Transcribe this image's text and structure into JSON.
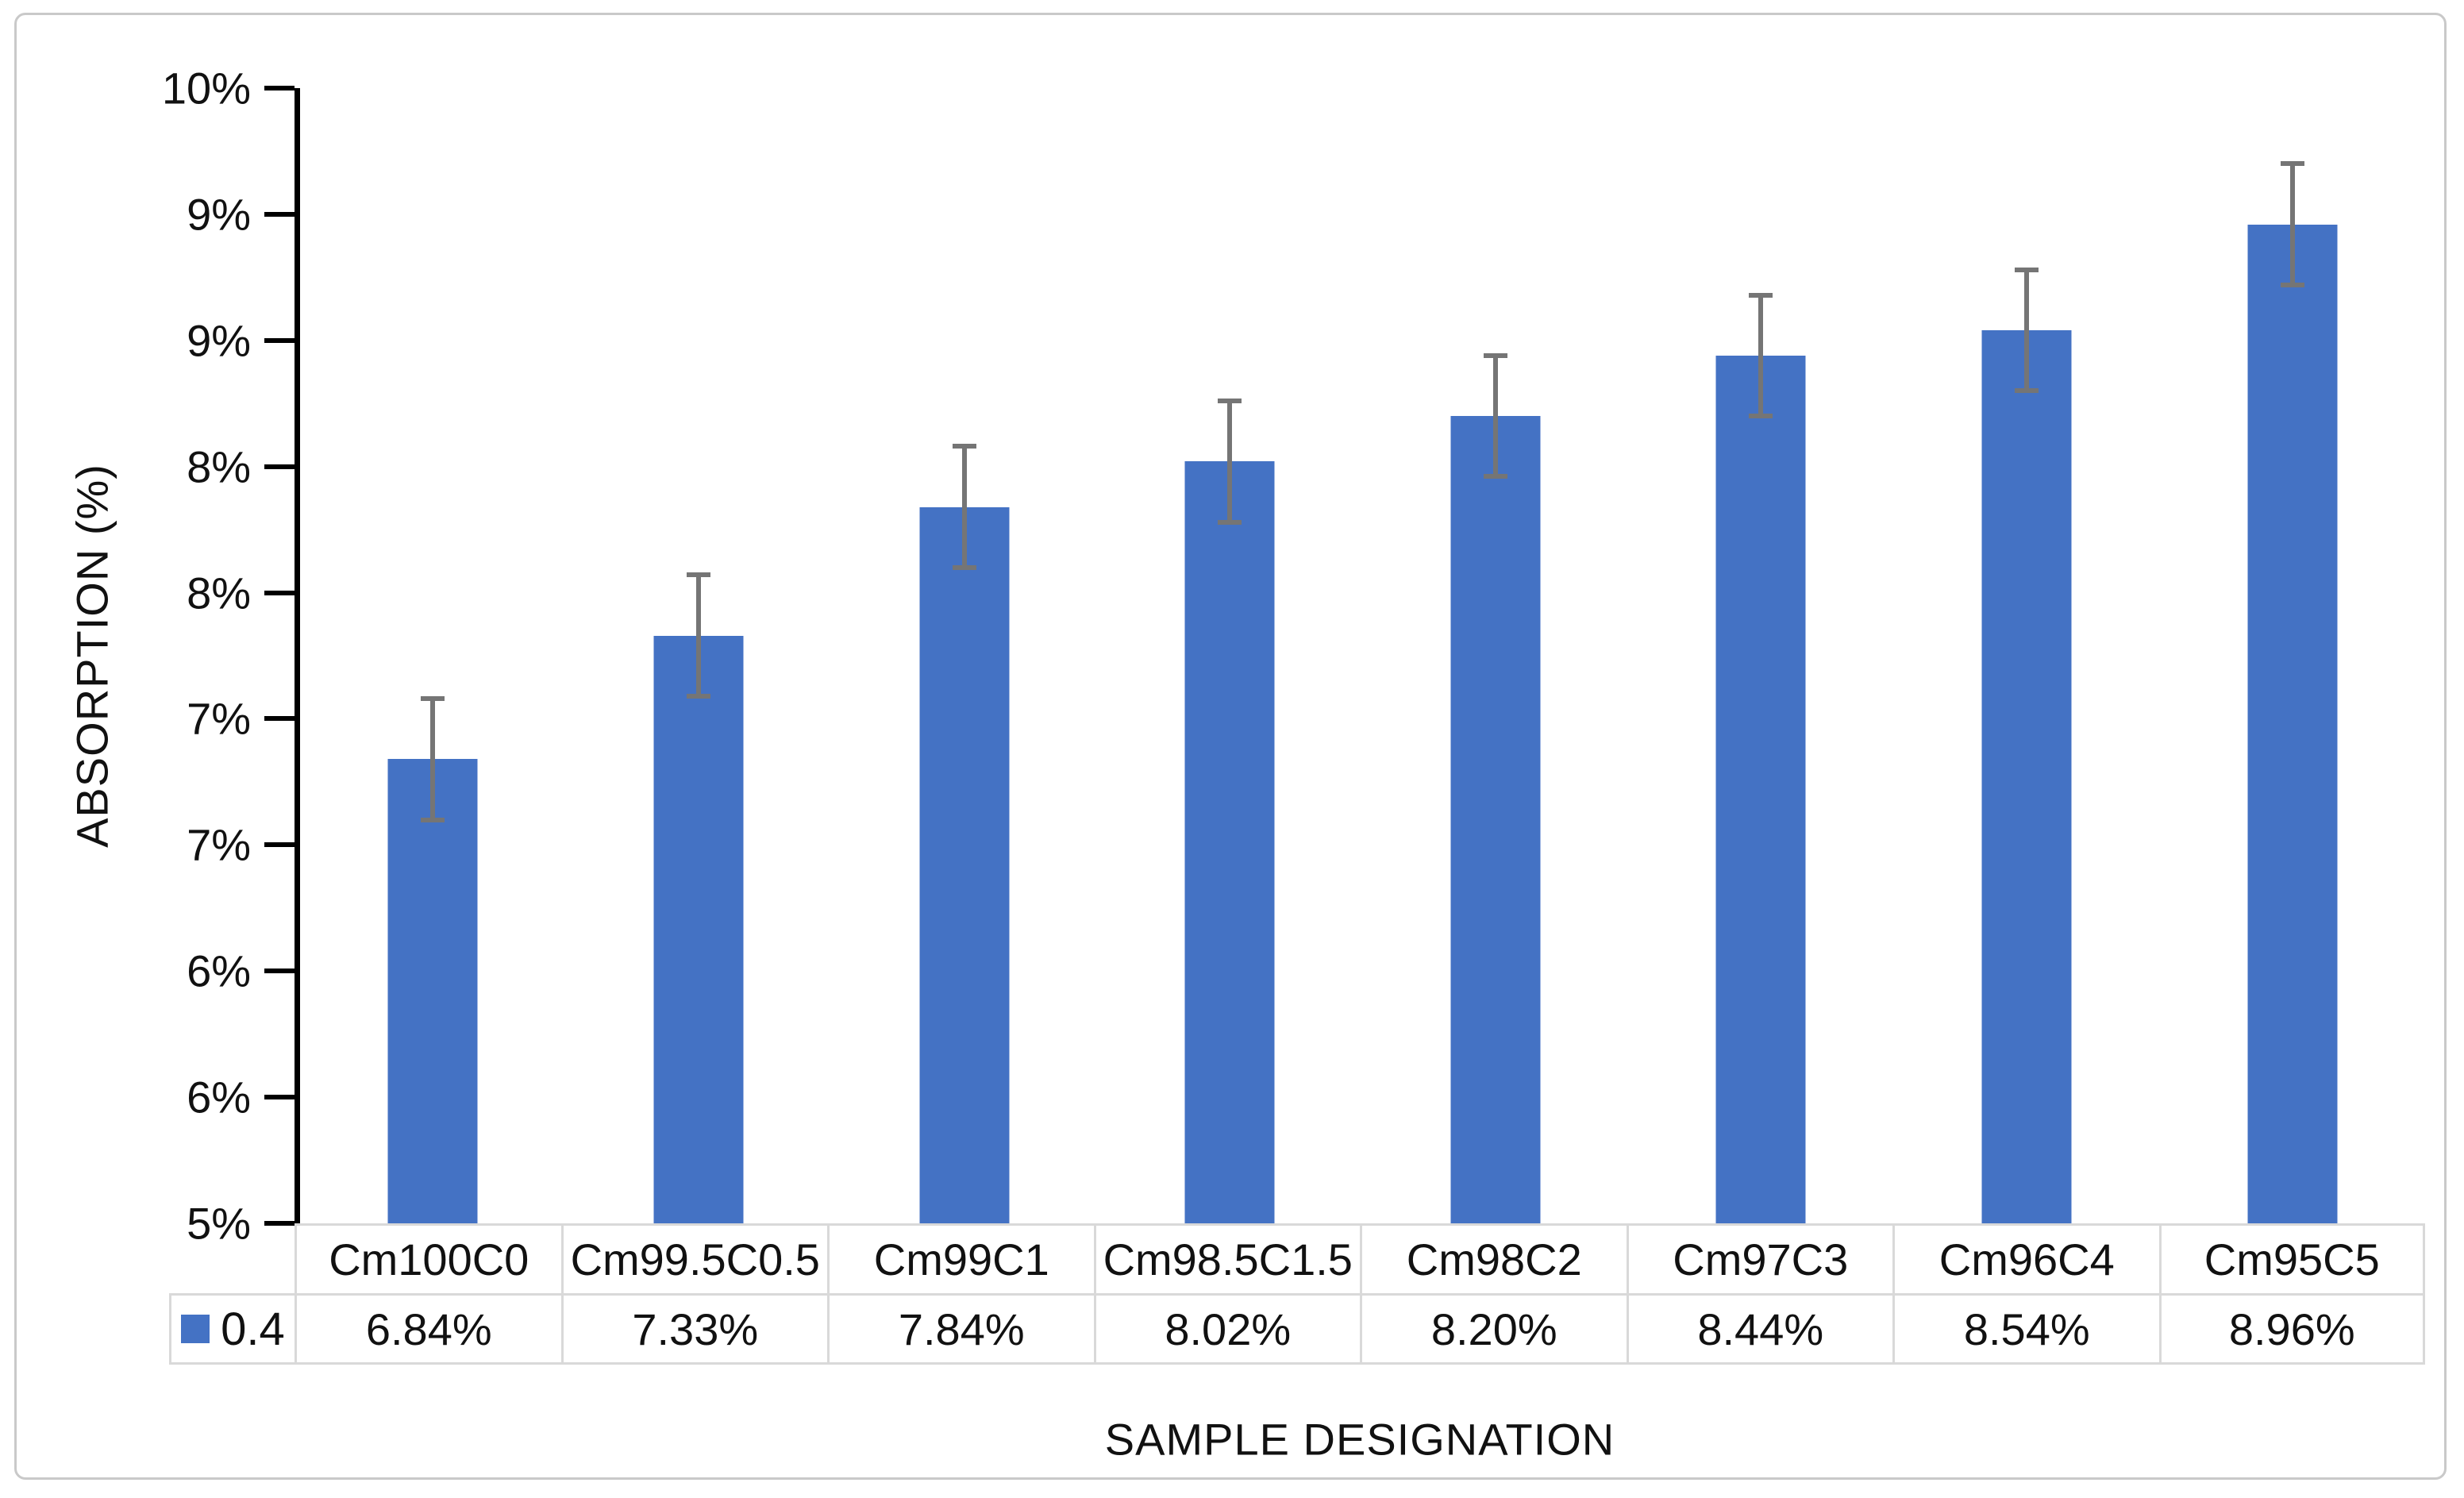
{
  "chart_data": {
    "type": "bar",
    "title": "",
    "xlabel": "SAMPLE DESIGNATION",
    "ylabel": "ABSORPTION (%)",
    "categories": [
      "Cm100C0",
      "Cm99.5C0.5",
      "Cm99C1",
      "Cm98.5C1.5",
      "Cm98C2",
      "Cm97C3",
      "Cm96C4",
      "Cm95C5"
    ],
    "series": [
      {
        "name": "0.4",
        "values": [
          6.84,
          7.33,
          7.84,
          8.02,
          8.2,
          8.44,
          8.54,
          8.96
        ],
        "display_values": [
          "6.84%",
          "7.33%",
          "7.84%",
          "8.02%",
          "8.20%",
          "8.44%",
          "8.54%",
          "8.96%"
        ]
      }
    ],
    "error_bars": {
      "plus": 0.24,
      "minus": 0.24
    },
    "y_axis": {
      "min": 5,
      "max": 9.5,
      "tick_step": 0.5,
      "tick_labels_top_to_bottom": [
        "10%",
        "9%",
        "9%",
        "8%",
        "8%",
        "7%",
        "7%",
        "6%",
        "6%",
        "5%"
      ]
    },
    "legend": {
      "label": "0.4",
      "position": "table-left"
    },
    "data_table_shown": true,
    "grid": "off",
    "colors": {
      "bar_fill": "#4472C4",
      "error_bar": "#757575",
      "axis_line": "#000000",
      "table_border": "#d9d9d9",
      "frame_border": "#c9c9c9",
      "text": "#111111"
    }
  }
}
